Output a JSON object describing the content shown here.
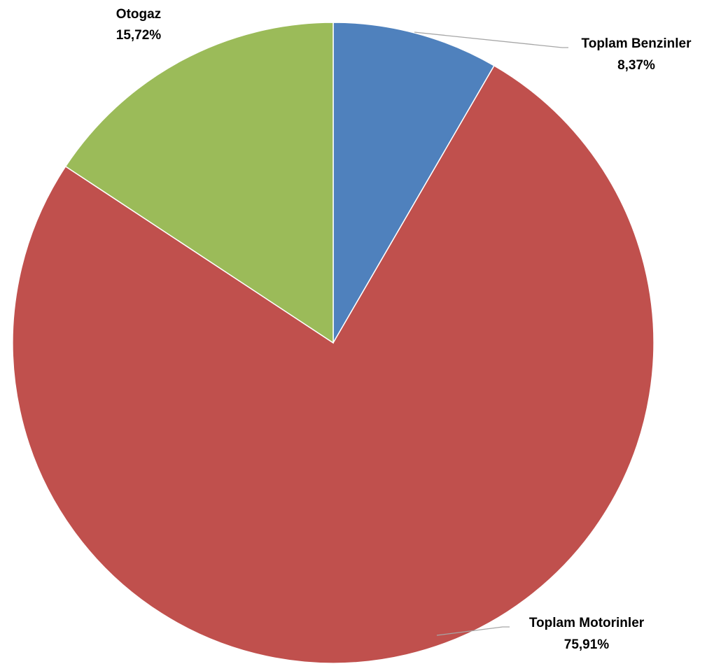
{
  "chart_data": {
    "type": "pie",
    "title": "",
    "slices": [
      {
        "name": "Toplam Benzinler",
        "value": 8.37,
        "label": "8,37%",
        "color": "#4f81bd"
      },
      {
        "name": "Toplam Motorinler",
        "value": 75.91,
        "label": "75,91%",
        "color": "#c0504d"
      },
      {
        "name": "Otogaz",
        "value": 15.72,
        "label": "15,72%",
        "color": "#9bbb59"
      }
    ],
    "start_angle": "12 o'clock",
    "direction": "clockwise",
    "legend": "none",
    "data_labels": "category name and percentage, outside end with leader lines"
  }
}
